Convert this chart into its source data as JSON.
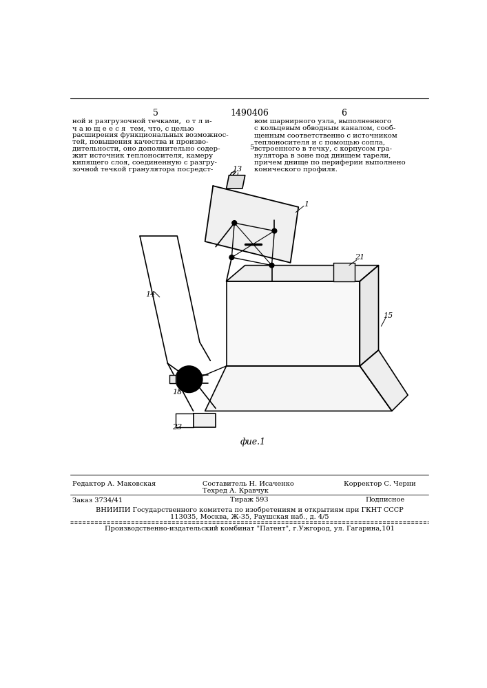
{
  "bg_color": "#ffffff",
  "page_number_left": "5",
  "page_number_center": "1490406",
  "page_number_right": "6",
  "left_col_text": [
    "ной и разгрузочной течками,  о т л и-",
    "ч а ю щ е е с я  тем, что, с целью",
    "расширения функциональных возможнос-",
    "тей, повышения качества и произво-",
    "дительности, оно дополнительно содер-",
    "жит источник теплоносителя, камеру",
    "кипящего слоя, соединенную с разгру-",
    "зочной течкой гранулятора посредст-"
  ],
  "right_col_num": "5",
  "right_col_text": [
    "вом шарнирного узла, выполненного",
    "с кольцевым обводным каналом, сооб-",
    "щенным соответственно с источником",
    "теплоносителя и с помощью сопла,",
    "встроенного в течку, с корпусом гра-",
    "нулятора в зоне под днищем тарели,",
    "причем днище по периферии выполнено",
    "конического профиля."
  ],
  "fig_caption": "фие.1",
  "footer_editor": "Редактор А. Маковская",
  "footer_composer": "Составитель Н. Исаченко",
  "footer_techred": "Техред А. Кравчук",
  "footer_corrector": "Корректор С. Черни",
  "footer_order": "Заказ 3734/41",
  "footer_tirazh": "Тираж 593",
  "footer_podp": "Подписное",
  "footer_vniipи": "ВНИИПИ Государственного комитета по изобретениям и открытиям при ГКНТ СССР",
  "footer_addr": "113035, Москва, Ж-35, Раушская наб., д. 4/5",
  "footer_patent": "Производственно-издательский комбинат \"Патент\", г.Ужгород, ул. Гагарина,101",
  "text_color": "#000000",
  "line_color": "#000000"
}
